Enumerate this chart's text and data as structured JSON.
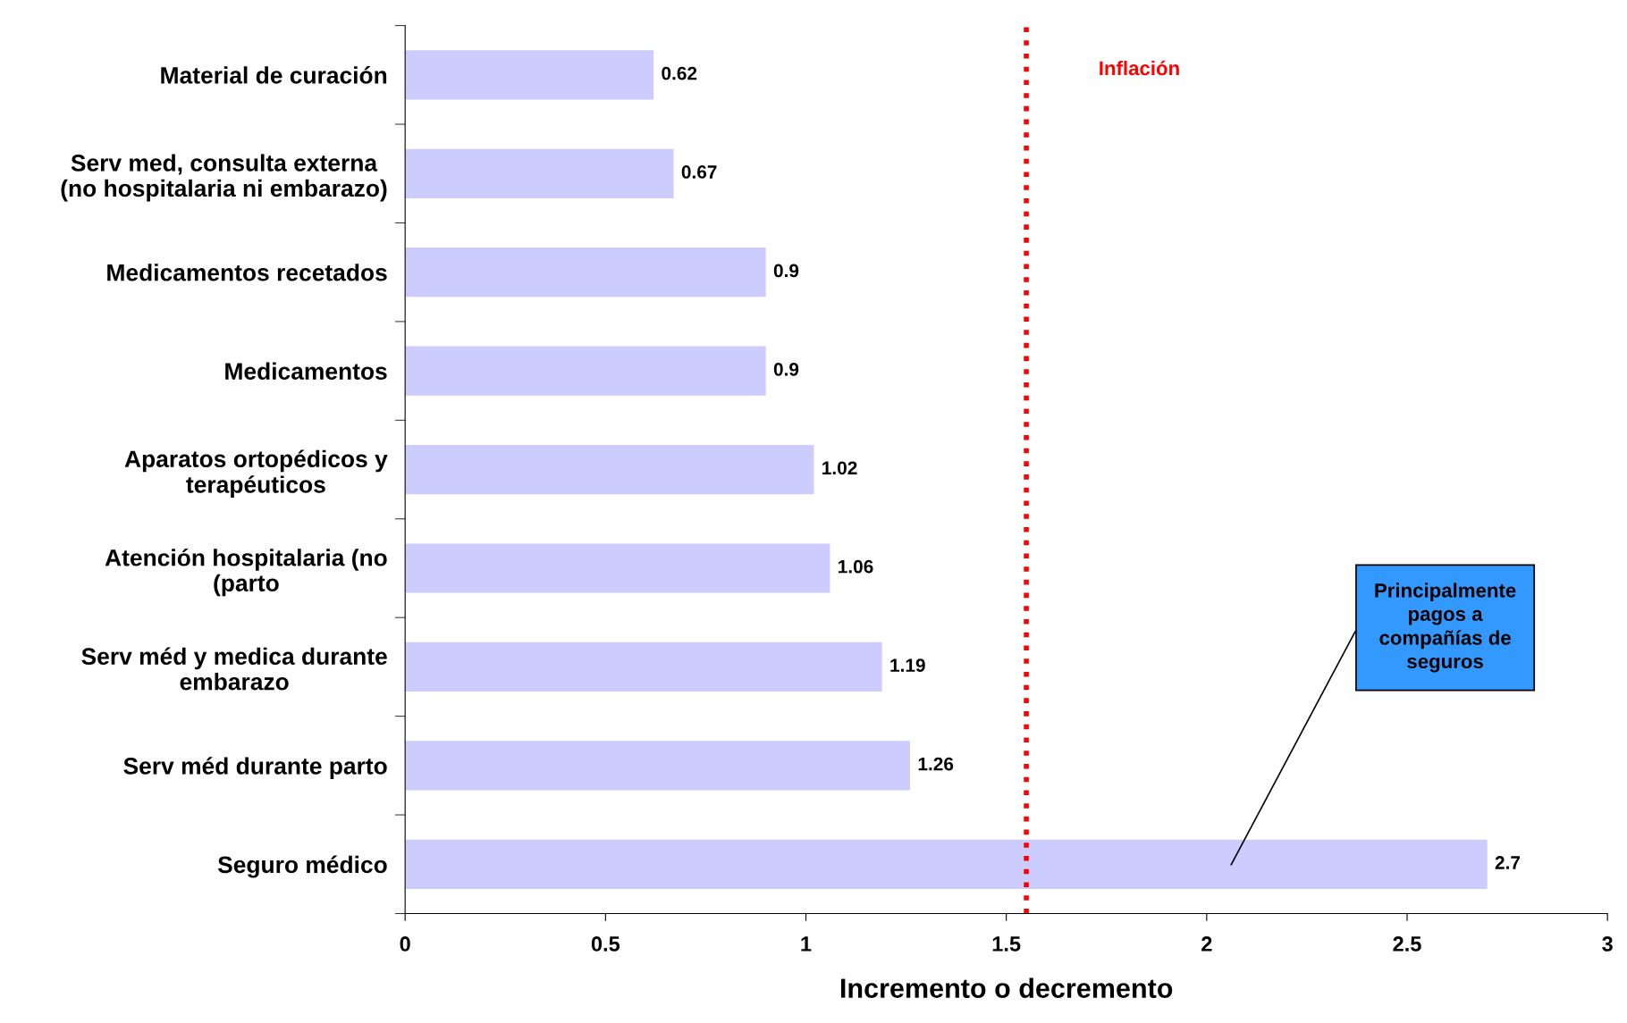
{
  "chart_data": {
    "type": "bar",
    "orientation": "horizontal",
    "categories": [
      "Material de curación",
      "Serv med, consulta externa\n(no hospitalaria ni embarazo)",
      "Medicamentos recetados",
      "Medicamentos",
      "Aparatos ortopédicos y\nterapéuticos",
      "Atención hospitalaria (no\n(parto",
      "Serv méd y medica durante\nembarazo",
      "Serv méd durante parto",
      "Seguro médico"
    ],
    "values": [
      0.62,
      0.67,
      0.9,
      0.9,
      1.02,
      1.06,
      1.19,
      1.26,
      2.7
    ],
    "color": "#ccccff",
    "data_labels": true,
    "xlabel": "Incremento o decremento",
    "xlim": [
      0,
      3
    ],
    "xticks": [
      0,
      0.5,
      1,
      1.5,
      2,
      2.5,
      3
    ],
    "grid": false,
    "ref_lines": [
      {
        "axis": "x",
        "value": 1.55,
        "label": "Inflación",
        "color": "#ff0000",
        "line_style": "dotted"
      }
    ],
    "annotations": [
      "Principalmente\npagos a\ncompañías de\nseguros"
    ]
  }
}
